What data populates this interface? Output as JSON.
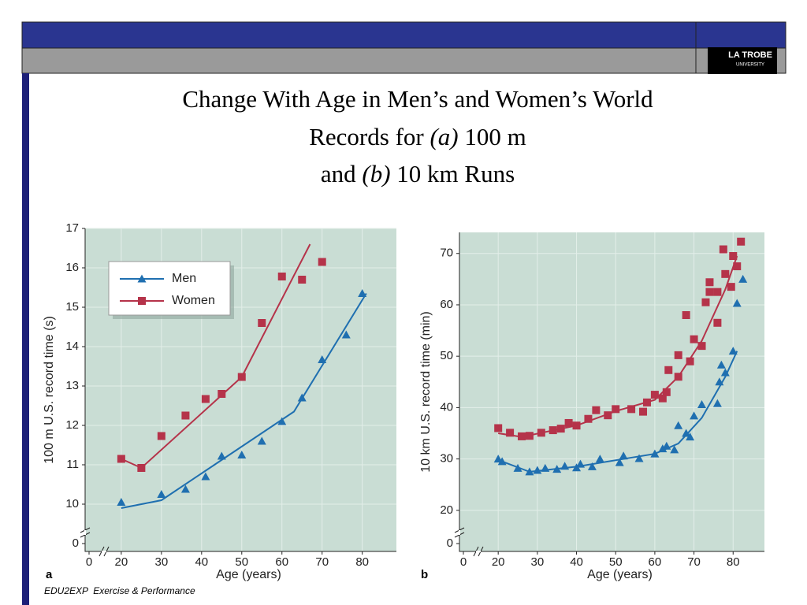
{
  "title": [
    "Change With Age in Men’s and Women’s World",
    "Records for",
    "(a)",
    "100 m",
    "and",
    "(b)",
    "10 km Runs"
  ],
  "logo": [
    "LA TROBE",
    "UNIVERSITY"
  ],
  "footer": "EDU2EXP  Exercise & Performance",
  "chart_data": [
    {
      "type": "scatter",
      "panel": "a",
      "xlabel": "Age (years)",
      "ylabel": "100 m U.S. record time (s)",
      "xlim": [
        11,
        88.5
      ],
      "ylim": [
        8.8,
        17
      ],
      "xticks": [
        0,
        20,
        30,
        40,
        50,
        60,
        70,
        80
      ],
      "yticks": [
        0,
        10,
        11,
        12,
        13,
        14,
        15,
        16,
        17
      ],
      "grid": true,
      "axis_break": true,
      "legend": "upper left",
      "series": [
        {
          "name": "Men",
          "color": "#1f6fb0",
          "marker": "triangle",
          "x": [
            20,
            30,
            36,
            41,
            45,
            50,
            55,
            60,
            65,
            70,
            76,
            80
          ],
          "values": [
            10.05,
            10.25,
            10.38,
            10.7,
            11.22,
            11.25,
            11.6,
            12.1,
            12.7,
            13.67,
            14.3,
            15.35
          ],
          "fit_x": [
            20,
            30,
            63,
            81
          ],
          "fit_values": [
            9.9,
            10.1,
            12.35,
            15.35
          ]
        },
        {
          "name": "Women",
          "color": "#b5334a",
          "marker": "square",
          "x": [
            20,
            25,
            30,
            36,
            41,
            45,
            50,
            55,
            60,
            65,
            70
          ],
          "values": [
            11.15,
            10.92,
            11.73,
            12.25,
            12.67,
            12.8,
            13.23,
            14.6,
            15.78,
            15.7,
            16.15
          ],
          "fit_x": [
            20,
            25,
            50,
            67
          ],
          "fit_values": [
            11.15,
            10.92,
            13.23,
            16.6
          ]
        }
      ]
    },
    {
      "type": "scatter",
      "panel": "b",
      "xlabel": "Age (years)",
      "ylabel": "10 km U.S. record time (min)",
      "xlim": [
        10.1,
        88
      ],
      "ylim": [
        12,
        74.1
      ],
      "xticks": [
        0,
        20,
        30,
        40,
        50,
        60,
        70,
        80
      ],
      "yticks": [
        0,
        20,
        30,
        40,
        50,
        60,
        70
      ],
      "grid": true,
      "axis_break": true,
      "series": [
        {
          "name": "Men",
          "color": "#1f6fb0",
          "marker": "triangle",
          "x": [
            20,
            21,
            25,
            28,
            30,
            32,
            35,
            37,
            40,
            41,
            44,
            46,
            51,
            52,
            56,
            60,
            62,
            63,
            65,
            66,
            68,
            69,
            70,
            72,
            76,
            76.5,
            77,
            78,
            80,
            81,
            82.5
          ],
          "values": [
            30,
            29.5,
            28.2,
            27.5,
            27.8,
            28.2,
            28,
            28.6,
            28.3,
            29,
            28.5,
            30,
            29.3,
            30.6,
            30.1,
            31,
            32,
            32.5,
            31.8,
            36.5,
            35,
            34.3,
            38.4,
            40.6,
            40.8,
            45,
            48.3,
            46.8,
            51,
            60.3,
            65
          ],
          "fit_x": [
            20,
            28,
            40,
            60,
            66,
            72,
            78,
            81
          ],
          "fit_values": [
            29.8,
            27.5,
            28.5,
            31,
            33,
            38,
            46,
            51
          ]
        },
        {
          "name": "Women",
          "color": "#b5334a",
          "marker": "square",
          "x": [
            20,
            23,
            26,
            28,
            31,
            34,
            36,
            38,
            40,
            43,
            45,
            48,
            50,
            54,
            57,
            58,
            60,
            62,
            63,
            63.5,
            66,
            66,
            68,
            69,
            70,
            72,
            73,
            74,
            74,
            76,
            76,
            77.5,
            78,
            79.5,
            80,
            81,
            82
          ],
          "values": [
            36,
            35.1,
            34.4,
            34.5,
            35.1,
            35.6,
            35.9,
            37,
            36.5,
            37.8,
            39.5,
            38.5,
            39.7,
            39.7,
            39.2,
            41,
            42.5,
            41.8,
            43,
            47.3,
            46,
            50.2,
            58,
            49,
            53.3,
            52,
            60.5,
            62.5,
            64.4,
            56.5,
            62.5,
            70.8,
            66,
            63.5,
            69.5,
            67.5,
            72.3
          ],
          "fit_x": [
            20,
            26,
            40,
            50,
            60,
            66,
            72,
            78,
            81
          ],
          "fit_values": [
            35,
            34.3,
            36.5,
            39.3,
            41.5,
            46,
            53,
            63,
            69.5
          ]
        }
      ]
    }
  ]
}
